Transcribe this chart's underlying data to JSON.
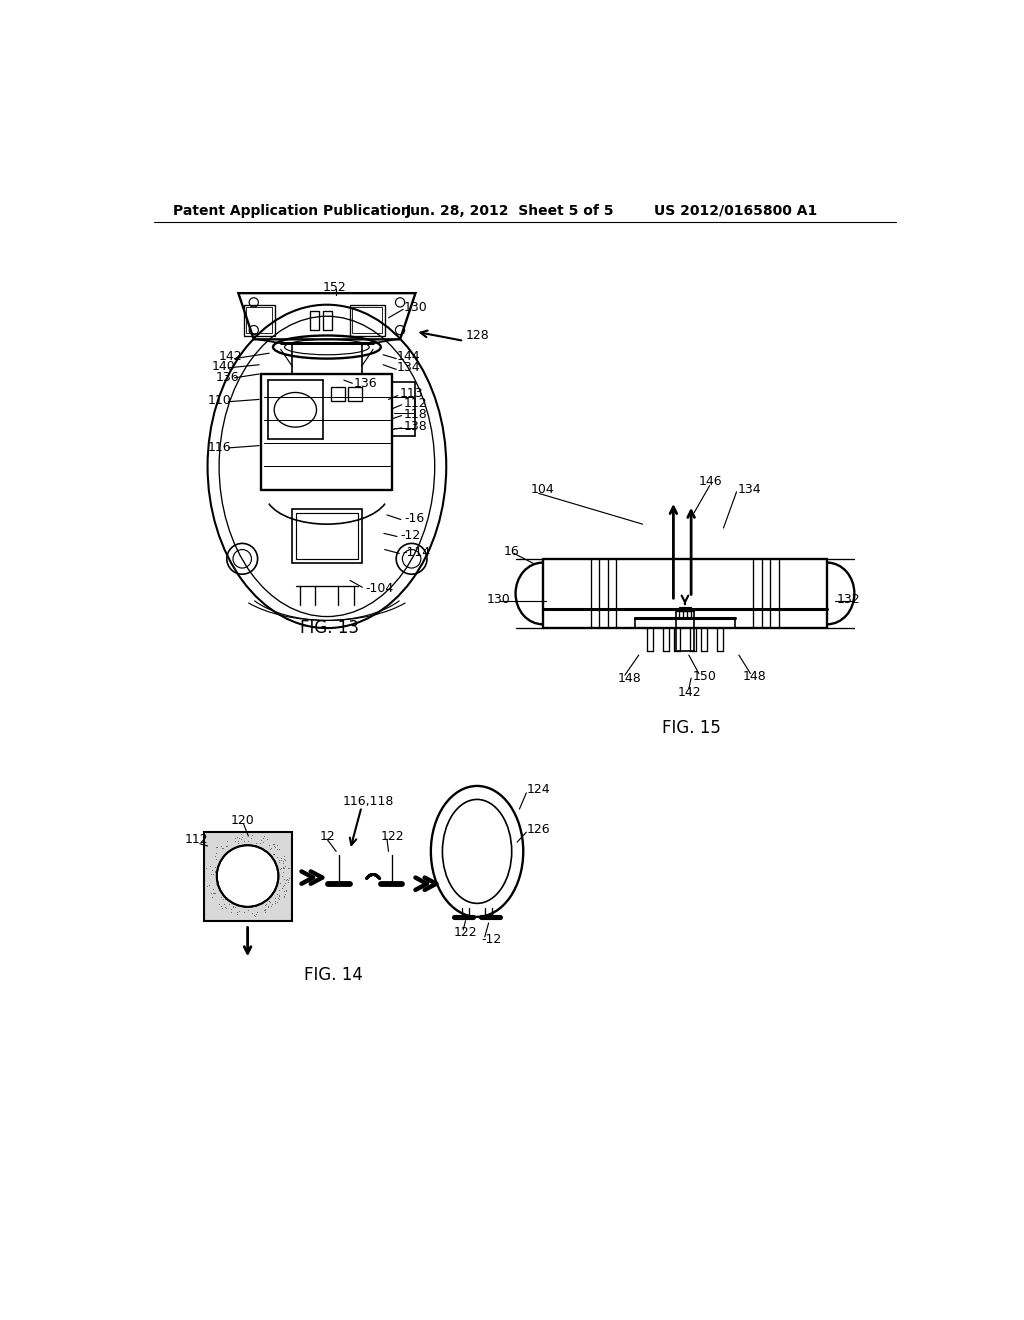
{
  "background_color": "#ffffff",
  "header_left": "Patent Application Publication",
  "header_center": "Jun. 28, 2012  Sheet 5 of 5",
  "header_right": "US 2012/0165800 A1",
  "fig13_label": "FIG. 13",
  "fig14_label": "FIG. 14",
  "fig15_label": "FIG. 15",
  "line_color": "#000000",
  "line_width": 1.2,
  "font_size_header": 10,
  "font_size_label": 12,
  "font_size_ref": 9
}
